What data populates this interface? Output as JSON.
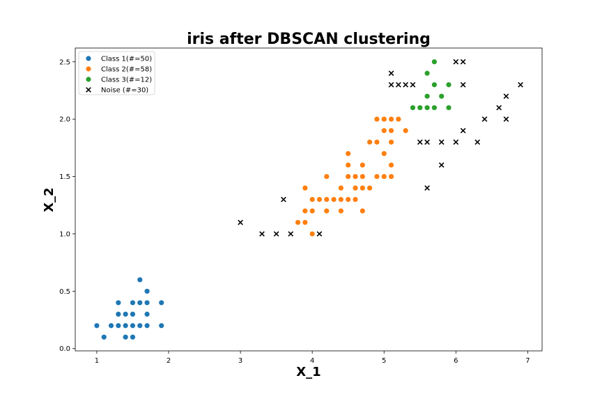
{
  "chart_data": {
    "type": "scatter",
    "title": "iris after DBSCAN clustering",
    "xlabel": "X_1",
    "ylabel": "X_2",
    "xlim": [
      0.7,
      7.2
    ],
    "ylim": [
      -0.02,
      2.62
    ],
    "xticks": [
      "1",
      "2",
      "3",
      "4",
      "5",
      "6",
      "7"
    ],
    "yticks": [
      "0.0",
      "0.5",
      "1.0",
      "1.5",
      "2.0",
      "2.5"
    ],
    "grid": false,
    "legend_position": "top-left",
    "series": [
      {
        "name": "Class 1(#=50)",
        "marker": "circle",
        "color": "#1f77b4",
        "points": [
          [
            1.0,
            0.2
          ],
          [
            1.1,
            0.1
          ],
          [
            1.2,
            0.2
          ],
          [
            1.3,
            0.2
          ],
          [
            1.3,
            0.3
          ],
          [
            1.3,
            0.4
          ],
          [
            1.4,
            0.1
          ],
          [
            1.4,
            0.2
          ],
          [
            1.4,
            0.3
          ],
          [
            1.5,
            0.1
          ],
          [
            1.5,
            0.2
          ],
          [
            1.5,
            0.3
          ],
          [
            1.5,
            0.4
          ],
          [
            1.6,
            0.2
          ],
          [
            1.6,
            0.4
          ],
          [
            1.6,
            0.6
          ],
          [
            1.7,
            0.2
          ],
          [
            1.7,
            0.3
          ],
          [
            1.7,
            0.4
          ],
          [
            1.7,
            0.5
          ],
          [
            1.9,
            0.2
          ],
          [
            1.9,
            0.4
          ]
        ]
      },
      {
        "name": "Class 2(#=58)",
        "marker": "circle",
        "color": "#ff7f0e",
        "points": [
          [
            3.8,
            1.1
          ],
          [
            3.9,
            1.1
          ],
          [
            3.9,
            1.2
          ],
          [
            3.9,
            1.4
          ],
          [
            4.0,
            1.0
          ],
          [
            4.0,
            1.2
          ],
          [
            4.0,
            1.3
          ],
          [
            4.1,
            1.3
          ],
          [
            4.2,
            1.2
          ],
          [
            4.2,
            1.3
          ],
          [
            4.2,
            1.5
          ],
          [
            4.3,
            1.3
          ],
          [
            4.4,
            1.2
          ],
          [
            4.4,
            1.3
          ],
          [
            4.4,
            1.4
          ],
          [
            4.5,
            1.3
          ],
          [
            4.5,
            1.5
          ],
          [
            4.5,
            1.6
          ],
          [
            4.5,
            1.7
          ],
          [
            4.6,
            1.3
          ],
          [
            4.6,
            1.4
          ],
          [
            4.6,
            1.5
          ],
          [
            4.7,
            1.2
          ],
          [
            4.7,
            1.4
          ],
          [
            4.7,
            1.5
          ],
          [
            4.7,
            1.6
          ],
          [
            4.8,
            1.4
          ],
          [
            4.8,
            1.8
          ],
          [
            4.9,
            1.5
          ],
          [
            4.9,
            1.8
          ],
          [
            4.9,
            2.0
          ],
          [
            5.0,
            1.5
          ],
          [
            5.0,
            1.7
          ],
          [
            5.0,
            1.9
          ],
          [
            5.0,
            2.0
          ],
          [
            5.1,
            1.5
          ],
          [
            5.1,
            1.6
          ],
          [
            5.1,
            1.8
          ],
          [
            5.1,
            1.9
          ],
          [
            5.1,
            2.0
          ],
          [
            5.2,
            2.0
          ],
          [
            5.3,
            1.9
          ]
        ]
      },
      {
        "name": "Class 3(#=12)",
        "marker": "circle",
        "color": "#2ca02c",
        "points": [
          [
            5.4,
            2.1
          ],
          [
            5.5,
            2.1
          ],
          [
            5.6,
            2.1
          ],
          [
            5.6,
            2.2
          ],
          [
            5.6,
            2.4
          ],
          [
            5.7,
            2.1
          ],
          [
            5.7,
            2.3
          ],
          [
            5.7,
            2.5
          ],
          [
            5.8,
            2.2
          ],
          [
            5.9,
            2.1
          ],
          [
            5.9,
            2.3
          ]
        ]
      },
      {
        "name": "Noise (#=30)",
        "marker": "x",
        "color": "#000000",
        "points": [
          [
            3.0,
            1.1
          ],
          [
            3.3,
            1.0
          ],
          [
            3.5,
            1.0
          ],
          [
            3.6,
            1.3
          ],
          [
            3.7,
            1.0
          ],
          [
            4.1,
            1.0
          ],
          [
            5.1,
            2.3
          ],
          [
            5.1,
            2.4
          ],
          [
            5.2,
            2.3
          ],
          [
            5.3,
            2.3
          ],
          [
            5.4,
            2.3
          ],
          [
            5.5,
            1.8
          ],
          [
            5.6,
            1.4
          ],
          [
            5.6,
            1.8
          ],
          [
            5.8,
            1.6
          ],
          [
            5.8,
            1.8
          ],
          [
            6.0,
            1.8
          ],
          [
            6.0,
            2.5
          ],
          [
            6.1,
            1.9
          ],
          [
            6.1,
            2.3
          ],
          [
            6.1,
            2.5
          ],
          [
            6.3,
            1.8
          ],
          [
            6.4,
            2.0
          ],
          [
            6.6,
            2.1
          ],
          [
            6.7,
            2.0
          ],
          [
            6.7,
            2.2
          ],
          [
            6.9,
            2.3
          ]
        ]
      }
    ]
  }
}
